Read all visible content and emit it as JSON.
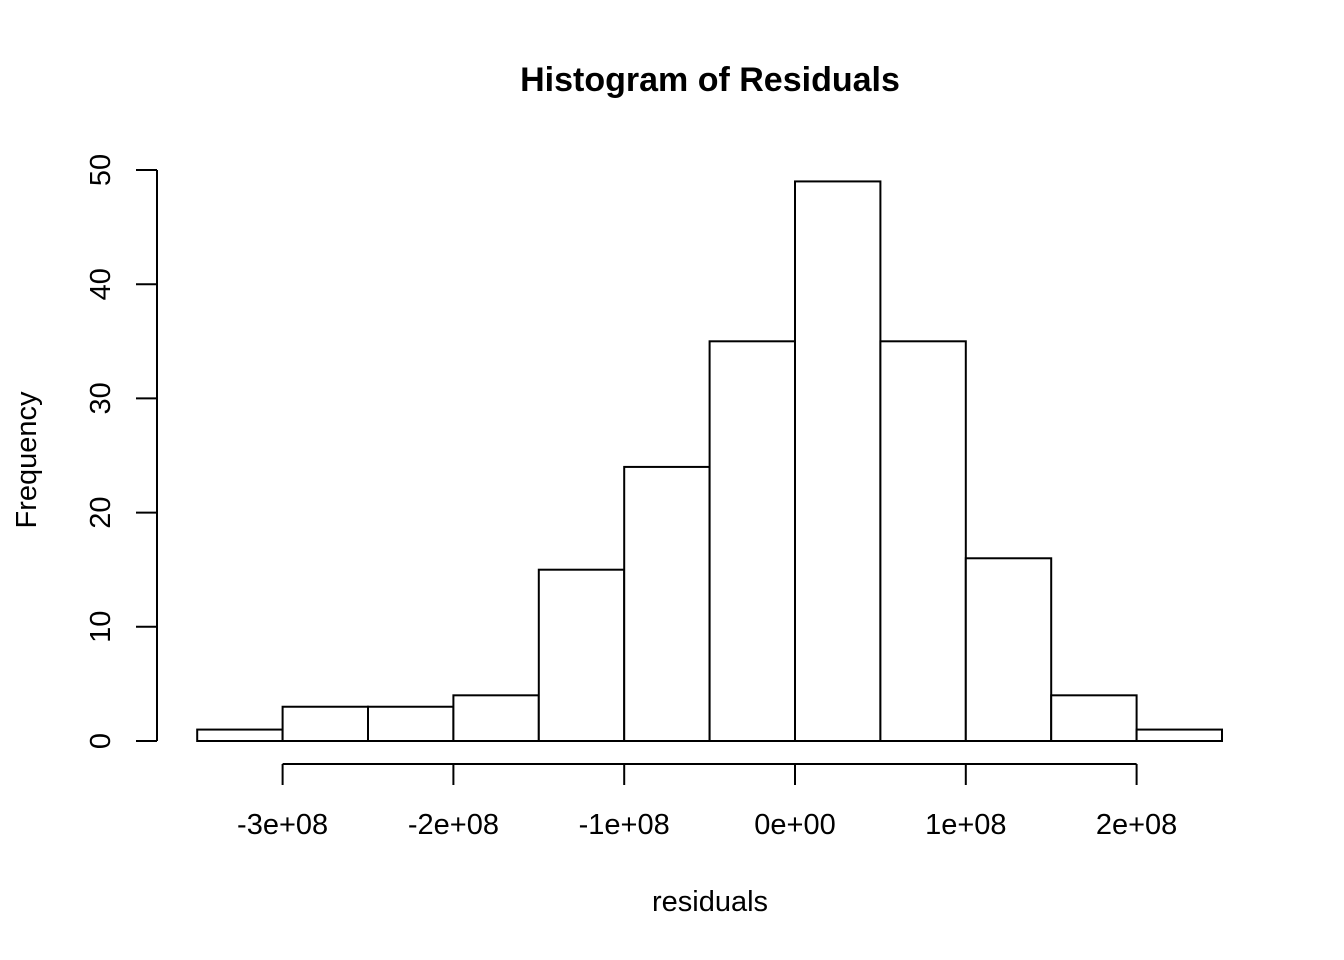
{
  "chart_data": {
    "type": "bar",
    "title": "Histogram of Residuals",
    "xlabel": "residuals",
    "ylabel": "Frequency",
    "bins": [
      {
        "from": -350000000,
        "to": -300000000,
        "count": 1
      },
      {
        "from": -300000000,
        "to": -250000000,
        "count": 3
      },
      {
        "from": -250000000,
        "to": -200000000,
        "count": 3
      },
      {
        "from": -200000000,
        "to": -150000000,
        "count": 4
      },
      {
        "from": -150000000,
        "to": -100000000,
        "count": 15
      },
      {
        "from": -100000000,
        "to": -50000000,
        "count": 24
      },
      {
        "from": -50000000,
        "to": 0,
        "count": 35
      },
      {
        "from": 0,
        "to": 50000000,
        "count": 49
      },
      {
        "from": 50000000,
        "to": 100000000,
        "count": 35
      },
      {
        "from": 100000000,
        "to": 150000000,
        "count": 16
      },
      {
        "from": 150000000,
        "to": 200000000,
        "count": 4
      },
      {
        "from": 200000000,
        "to": 250000000,
        "count": 1
      }
    ],
    "x_ticks": [
      {
        "value": -300000000,
        "label": "-3e+08"
      },
      {
        "value": -200000000,
        "label": "-2e+08"
      },
      {
        "value": -100000000,
        "label": "-1e+08"
      },
      {
        "value": 0,
        "label": "0e+00"
      },
      {
        "value": 100000000,
        "label": "1e+08"
      },
      {
        "value": 200000000,
        "label": "2e+08"
      }
    ],
    "y_ticks": [
      {
        "value": 0,
        "label": "0"
      },
      {
        "value": 10,
        "label": "10"
      },
      {
        "value": 20,
        "label": "20"
      },
      {
        "value": 30,
        "label": "30"
      },
      {
        "value": 40,
        "label": "40"
      },
      {
        "value": 50,
        "label": "50"
      }
    ],
    "xlim": [
      -350000000,
      250000000
    ],
    "ylim": [
      0,
      50
    ],
    "grid": false,
    "legend": "none"
  }
}
